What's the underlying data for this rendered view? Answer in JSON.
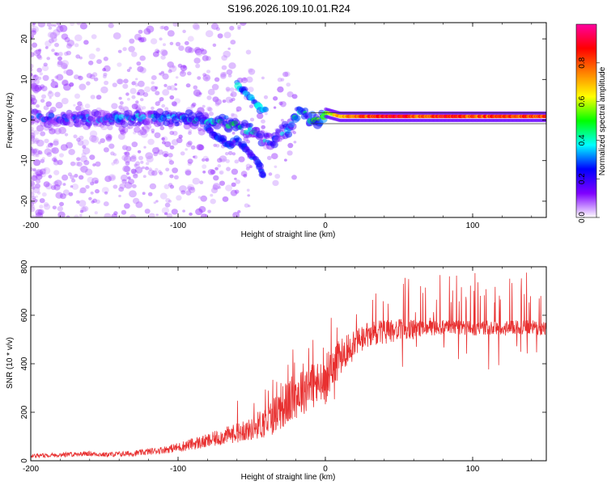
{
  "title": "S196.2026.109.10.01.R24",
  "chart_data": [
    {
      "type": "heatmap",
      "name": "spectrogram",
      "xlabel": "Height of straight line (km)",
      "ylabel": "Frequency (Hz)",
      "xlim": [
        -200,
        150
      ],
      "ylim": [
        -24,
        24
      ],
      "xticks": [
        -200,
        -100,
        0,
        100
      ],
      "yticks": [
        -20,
        -10,
        0,
        10,
        20
      ],
      "colorbar": {
        "label": "Normalized spectral amplitude",
        "range": [
          0.0,
          1.0
        ],
        "ticks": [
          "0.0",
          "0.2",
          "0.4",
          "0.6",
          "0.8"
        ],
        "colors": [
          "#ffffff",
          "#7f00ff",
          "#0000ff",
          "#00ffff",
          "#00ff00",
          "#ffff00",
          "#ff8000",
          "#ff0000",
          "#ff00a0"
        ]
      },
      "features": {
        "main_track_x": [
          -200,
          -180,
          -160,
          -140,
          -120,
          -100,
          -90,
          -80,
          -70,
          -60,
          -50,
          -40,
          -35,
          -30,
          -25,
          -20,
          -15,
          -10,
          -5,
          0,
          10,
          30,
          50,
          60,
          80,
          100,
          120,
          150
        ],
        "main_track_freq": [
          0.5,
          0.5,
          0.5,
          0.5,
          0.5,
          0.5,
          0.3,
          0,
          -0.5,
          -1.5,
          -3,
          -5,
          -5.5,
          -3,
          -2,
          1,
          2,
          0,
          0,
          1.5,
          0.5,
          0.5,
          0.5,
          0.5,
          0.5,
          0.5,
          0.5,
          0.5
        ],
        "main_track_amp": [
          0.2,
          0.25,
          0.25,
          0.3,
          0.3,
          0.35,
          0.35,
          0.35,
          0.4,
          0.4,
          0.35,
          0.3,
          0.3,
          0.3,
          0.35,
          0.4,
          0.45,
          0.45,
          0.5,
          0.55,
          0.75,
          0.85,
          0.95,
          0.8,
          0.9,
          0.85,
          0.85,
          0.85
        ],
        "branch_x": [
          -80,
          -75,
          -70,
          -65,
          -60,
          -55,
          -50,
          -45,
          -42
        ],
        "branch_freq": [
          -2,
          -4,
          -5,
          -6,
          -5,
          -6.5,
          -9,
          -11,
          -14
        ],
        "branch2_x": [
          -60,
          -55,
          -50,
          -45,
          -40
        ],
        "branch2_freq": [
          9,
          7,
          5,
          3,
          2
        ]
      }
    },
    {
      "type": "line",
      "name": "snr",
      "xlabel": "Height of straight line (km)",
      "ylabel": "SNR (10 * v/v)",
      "xlim": [
        -200,
        150
      ],
      "ylim": [
        0,
        800
      ],
      "xticks": [
        -200,
        -100,
        0,
        100
      ],
      "yticks": [
        0,
        200,
        400,
        600,
        800
      ],
      "series": [
        {
          "name": "SNR",
          "color": "#e83030",
          "x": [
            -200,
            -180,
            -160,
            -150,
            -130,
            -110,
            -100,
            -90,
            -80,
            -70,
            -60,
            -50,
            -45,
            -40,
            -35,
            -30,
            -25,
            -20,
            -15,
            -10,
            -5,
            0,
            5,
            10,
            15,
            20,
            25,
            30,
            40,
            50,
            60,
            70,
            80,
            90,
            100,
            110,
            120,
            130,
            140,
            150
          ],
          "y": [
            20,
            25,
            30,
            25,
            30,
            45,
            55,
            70,
            80,
            100,
            115,
            130,
            150,
            160,
            190,
            220,
            240,
            270,
            300,
            320,
            310,
            320,
            380,
            430,
            460,
            480,
            500,
            520,
            530,
            540,
            540,
            550,
            550,
            550,
            545,
            550,
            545,
            550,
            550,
            545
          ],
          "noise": [
            8,
            10,
            10,
            10,
            12,
            15,
            20,
            25,
            30,
            35,
            40,
            45,
            60,
            70,
            80,
            90,
            95,
            100,
            110,
            110,
            100,
            90,
            80,
            75,
            70,
            65,
            60,
            55,
            50,
            45,
            40,
            35,
            30,
            30,
            30,
            30,
            30,
            30,
            30,
            30
          ]
        }
      ]
    }
  ]
}
